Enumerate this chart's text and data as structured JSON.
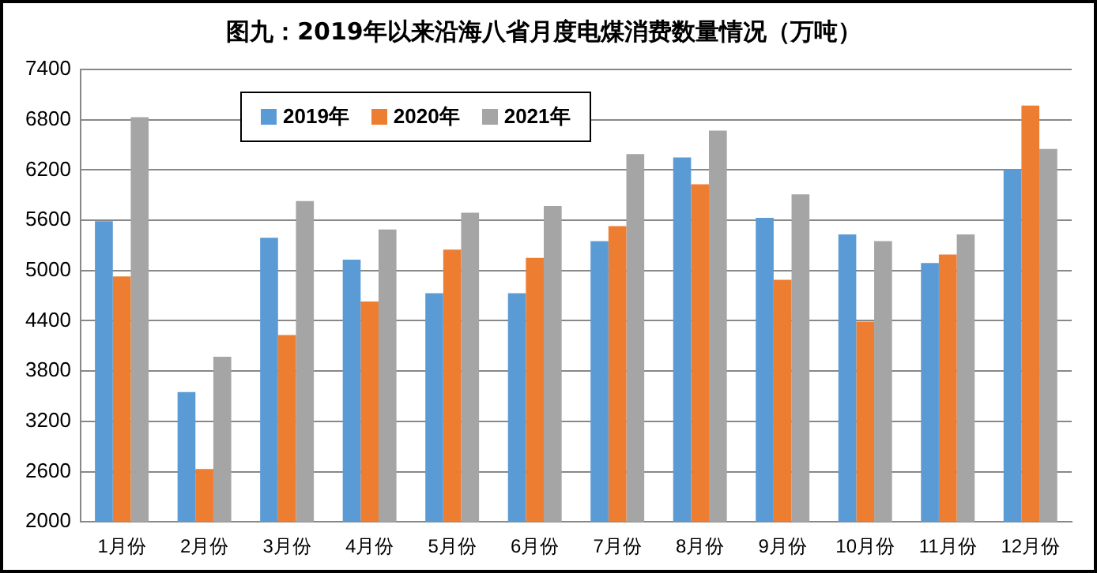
{
  "chart_data": {
    "type": "bar",
    "title": "图九：2019年以来沿海八省月度电煤消费数量情况（万吨）",
    "categories": [
      "1月份",
      "2月份",
      "3月份",
      "4月份",
      "5月份",
      "6月份",
      "7月份",
      "8月份",
      "9月份",
      "10月份",
      "11月份",
      "12月份"
    ],
    "series": [
      {
        "name": "2019年",
        "color": "#5b9bd5",
        "values": [
          5590,
          3550,
          5390,
          5130,
          4730,
          4730,
          5350,
          6350,
          5630,
          5430,
          5090,
          6210
        ]
      },
      {
        "name": "2020年",
        "color": "#ed7d31",
        "values": [
          4930,
          2630,
          4230,
          4630,
          5250,
          5150,
          5530,
          6030,
          4890,
          4390,
          5190,
          6970
        ]
      },
      {
        "name": "2021年",
        "color": "#a5a5a5",
        "values": [
          6830,
          3970,
          5830,
          5490,
          5690,
          5770,
          6390,
          6670,
          5910,
          5350,
          5430,
          6450
        ]
      }
    ],
    "ylim": [
      2000,
      7400
    ],
    "yticks": [
      2000,
      2600,
      3200,
      3800,
      4400,
      5000,
      5600,
      6200,
      6800,
      7400
    ],
    "grid": "y",
    "legend": "top left"
  }
}
